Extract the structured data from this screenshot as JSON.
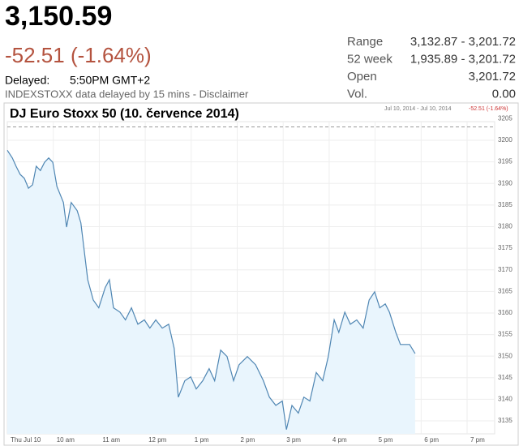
{
  "header": {
    "price": "3,150.59",
    "change": "-52.51 (-1.64%)",
    "delayed_label": "Delayed:",
    "delayed_time": "5:50PM GMT+2",
    "note": "INDEXSTOXX data delayed by 15 mins - Disclaimer"
  },
  "stats": [
    {
      "label": "Range",
      "value": "3,132.87 - 3,201.72"
    },
    {
      "label": "52 week",
      "value": "1,935.89 - 3,201.72"
    },
    {
      "label": "Open",
      "value": "3,201.72"
    },
    {
      "label": "Vol.",
      "value": "0.00"
    }
  ],
  "chart_data": {
    "type": "line",
    "title": "DJ Euro Stoxx 50 (10. července 2014)",
    "range_label": "Jul 10, 2014 - Jul 10, 2014",
    "change_label": "-52.51 (-1.64%)",
    "color": "#4f86b3",
    "fill": "#e9f5fd",
    "grid": true,
    "reference_line": 3203.1,
    "xlim": [
      9,
      19.6
    ],
    "ylim": [
      3132,
      3205
    ],
    "xticks": [
      {
        "value": 9,
        "label": "Thu Jul 10"
      },
      {
        "value": 10,
        "label": "10 am"
      },
      {
        "value": 11,
        "label": "11 am"
      },
      {
        "value": 12,
        "label": "12 pm"
      },
      {
        "value": 13,
        "label": "1 pm"
      },
      {
        "value": 14,
        "label": "2 pm"
      },
      {
        "value": 15,
        "label": "3 pm"
      },
      {
        "value": 16,
        "label": "4 pm"
      },
      {
        "value": 17,
        "label": "5 pm"
      },
      {
        "value": 18,
        "label": "6 pm"
      },
      {
        "value": 19,
        "label": "7 pm"
      }
    ],
    "yticks": [
      3135,
      3140,
      3145,
      3150,
      3155,
      3160,
      3165,
      3170,
      3175,
      3180,
      3185,
      3190,
      3195,
      3200,
      3205
    ],
    "x": [
      9.0,
      9.11,
      9.19,
      9.28,
      9.37,
      9.46,
      9.55,
      9.63,
      9.72,
      9.81,
      9.9,
      9.99,
      10.08,
      10.22,
      10.29,
      10.39,
      10.52,
      10.6,
      10.75,
      10.87,
      10.99,
      11.13,
      11.22,
      11.31,
      11.45,
      11.57,
      11.7,
      11.84,
      11.98,
      12.1,
      12.23,
      12.37,
      12.51,
      12.63,
      12.72,
      12.86,
      12.99,
      13.11,
      13.25,
      13.39,
      13.51,
      13.64,
      13.78,
      13.92,
      14.04,
      14.22,
      14.4,
      14.57,
      14.7,
      14.84,
      14.98,
      15.07,
      15.19,
      15.33,
      15.45,
      15.58,
      15.72,
      15.86,
      15.98,
      16.11,
      16.21,
      16.34,
      16.46,
      16.6,
      16.74,
      16.87,
      16.99,
      17.1,
      17.22,
      17.31,
      17.45,
      17.55,
      17.75,
      17.87
    ],
    "values": [
      3197.7,
      3195.9,
      3194.0,
      3192.1,
      3191.2,
      3188.9,
      3189.7,
      3194.0,
      3193.0,
      3194.9,
      3195.9,
      3194.9,
      3189.3,
      3185.6,
      3179.9,
      3185.6,
      3183.7,
      3180.9,
      3167.7,
      3163.0,
      3161.2,
      3165.9,
      3167.7,
      3161.2,
      3160.2,
      3158.4,
      3161.2,
      3157.4,
      3158.4,
      3156.5,
      3158.4,
      3156.5,
      3157.4,
      3151.8,
      3140.5,
      3144.3,
      3145.2,
      3142.4,
      3144.3,
      3147.1,
      3144.3,
      3151.4,
      3149.9,
      3144.3,
      3148.0,
      3149.9,
      3148.0,
      3144.3,
      3140.5,
      3138.6,
      3139.6,
      3133.0,
      3138.6,
      3136.8,
      3140.5,
      3139.6,
      3146.2,
      3144.3,
      3149.9,
      3158.4,
      3155.5,
      3160.2,
      3157.4,
      3158.4,
      3156.5,
      3163.0,
      3164.9,
      3161.2,
      3162.1,
      3160.2,
      3155.5,
      3152.7,
      3152.7,
      3150.6
    ]
  }
}
